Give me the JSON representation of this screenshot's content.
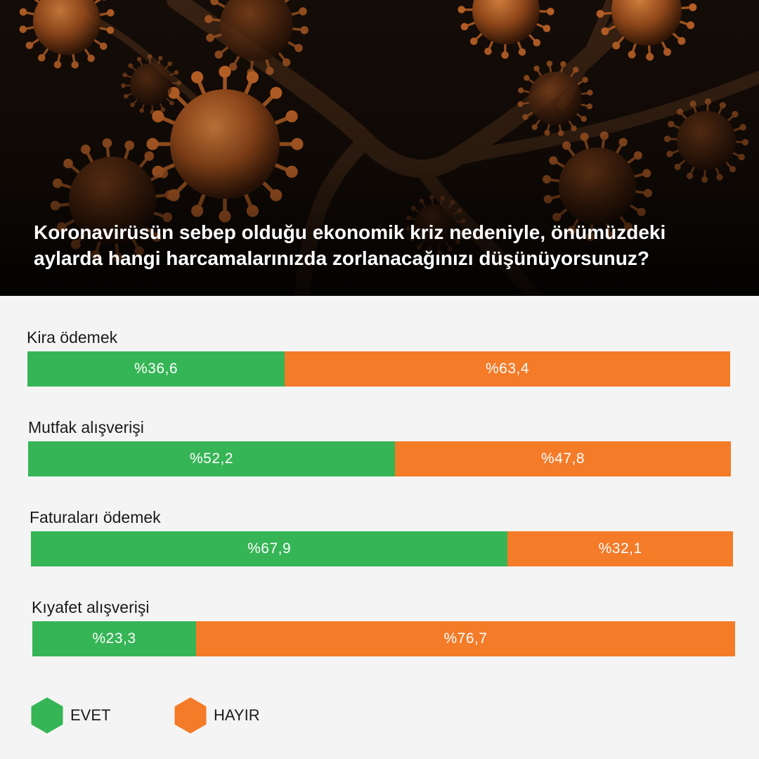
{
  "header": {
    "title_lines": [
      "Koronavirüsün sebep olduğu ekonomik kriz nedeniyle, önümüzdeki",
      "aylarda hangi harcamalarınızda zorlanacağınızı düşünüyorsunuz?"
    ]
  },
  "colors": {
    "yes": "#36b556",
    "no": "#f47b28",
    "hero_bg": "#120c08",
    "virus": "#c9692a"
  },
  "chart_data": {
    "type": "bar",
    "orientation": "horizontal",
    "stacked": true,
    "title": "Koronavirüsün sebep olduğu ekonomik kriz nedeniyle, önümüzdeki aylarda hangi harcamalarınızda zorlanacağınızı düşünüyorsunuz?",
    "categories": [
      "Kira ödemek",
      "Mutfak alışverişi",
      "Faturaları ödemek",
      "Kıyafet alışverişi"
    ],
    "series": [
      {
        "name": "EVET",
        "values": [
          36.6,
          52.2,
          67.9,
          23.3
        ],
        "labels": [
          "%36,6",
          "%52,2",
          "%67,9",
          "%23,3"
        ]
      },
      {
        "name": "HAYIR",
        "values": [
          63.4,
          47.8,
          32.1,
          76.7
        ],
        "labels": [
          "%63,4",
          "%47,8",
          "%32,1",
          "%76,7"
        ]
      }
    ],
    "xlim": [
      0,
      100
    ],
    "grid": false,
    "legend": "bottom-left"
  },
  "legend": [
    {
      "label": "EVET",
      "icon": "hexagon-icon"
    },
    {
      "label": "HAYIR",
      "icon": "hexagon-icon"
    }
  ]
}
